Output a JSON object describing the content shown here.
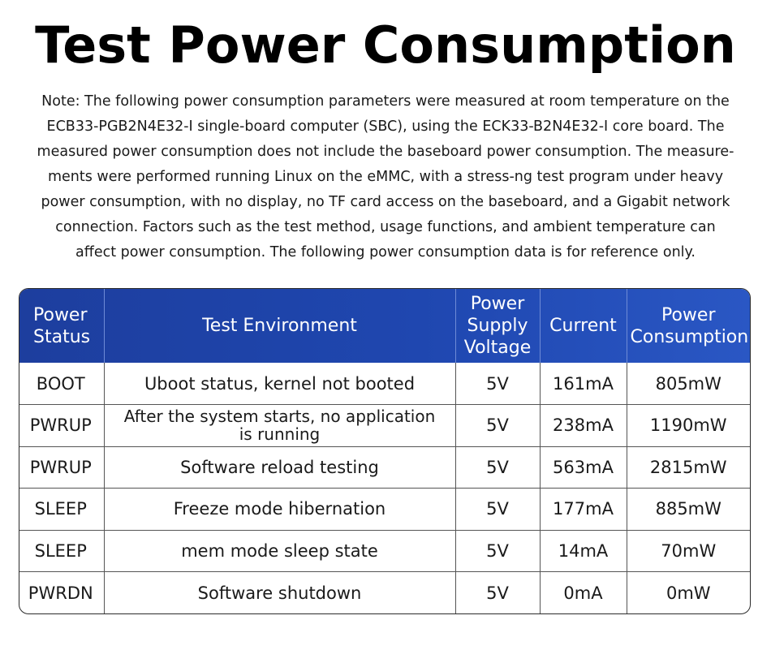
{
  "title": "Test Power Consumption",
  "note_lines": [
    "Note: The following power consumption parameters were measured at room temperature on the",
    "ECB33-PGB2N4E32-I single-board computer (SBC), using the ECK33-B2N4E32-I core board. The",
    "measured power consumption does not include the baseboard power consumption. The measure-",
    "ments were performed running Linux on the eMMC, with a stress-ng test program under heavy",
    "power consumption, with no display, no TF card access on the baseboard, and a Gigabit network",
    "connection. Factors such as the test method, usage functions, and ambient temperature can",
    "affect power consumption. The following power consumption data is for reference only."
  ],
  "table": {
    "headers": {
      "status": [
        "Power",
        "Status"
      ],
      "environment": [
        "Test Environment"
      ],
      "voltage": [
        "Power",
        "Supply",
        "Voltage"
      ],
      "current": [
        "Current"
      ],
      "consumption": [
        "Power",
        "Consumption"
      ]
    },
    "rows": [
      {
        "status": "BOOT",
        "environment": [
          "Uboot status, kernel not booted"
        ],
        "voltage": "5V",
        "current": "161mA",
        "consumption": "805mW"
      },
      {
        "status": "PWRUP",
        "environment": [
          "After the system starts, no application",
          "is running"
        ],
        "voltage": "5V",
        "current": "238mA",
        "consumption": "1190mW"
      },
      {
        "status": "PWRUP",
        "environment": [
          "Software reload testing"
        ],
        "voltage": "5V",
        "current": "563mA",
        "consumption": "2815mW"
      },
      {
        "status": "SLEEP",
        "environment": [
          "Freeze mode hibernation"
        ],
        "voltage": "5V",
        "current": "177mA",
        "consumption": "885mW"
      },
      {
        "status": "SLEEP",
        "environment": [
          "mem mode sleep state"
        ],
        "voltage": "5V",
        "current": "14mA",
        "consumption": "70mW"
      },
      {
        "status": "PWRDN",
        "environment": [
          "Software shutdown"
        ],
        "voltage": "5V",
        "current": "0mA",
        "consumption": "0mW"
      }
    ]
  },
  "colors": {
    "header_start": "#1d3e9e",
    "header_end": "#2a57c4",
    "border": "#2b2b2b"
  }
}
